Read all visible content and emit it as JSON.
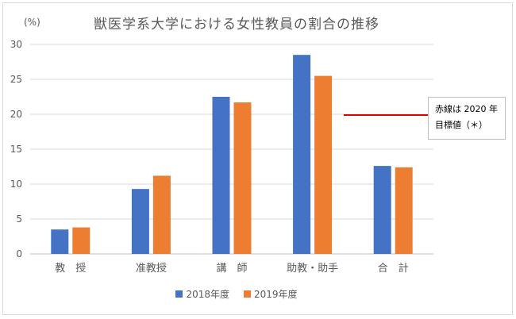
{
  "chart_data": {
    "type": "bar",
    "title": "獣医学系大学における女性教員の割合の推移",
    "ylabel": "(%)",
    "xlabel": "",
    "ylim": [
      0,
      30
    ],
    "yticks": [
      0,
      5,
      10,
      15,
      20,
      25,
      30
    ],
    "categories": [
      "教　授",
      "准教授",
      "講　師",
      "助教・助手",
      "合　計"
    ],
    "series": [
      {
        "name": "2018年度",
        "color": "#4472c4",
        "values": [
          3.5,
          9.3,
          22.5,
          28.5,
          12.6
        ]
      },
      {
        "name": "2019年度",
        "color": "#ed7d31",
        "values": [
          3.8,
          11.2,
          21.7,
          25.5,
          12.4
        ]
      }
    ],
    "grid": true,
    "legend_position": "bottom",
    "reference_line": {
      "value": 20,
      "color": "#e00000"
    },
    "annotation": {
      "line1": "赤線は 2020 年",
      "line2": "目標値（＊）"
    }
  }
}
